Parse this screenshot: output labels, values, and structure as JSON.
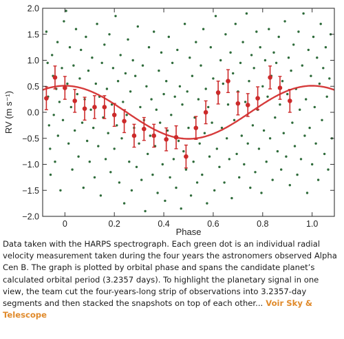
{
  "chart_data": {
    "type": "scatter",
    "xlabel": "Phase",
    "ylabel": "RV (m s⁻¹)",
    "xlim": [
      -0.09,
      1.09
    ],
    "ylim": [
      -2.0,
      2.0
    ],
    "xticks": [
      0.0,
      0.2,
      0.4,
      0.6,
      0.8,
      1.0
    ],
    "xtick_labels": [
      "0",
      "0.2",
      "0.4",
      "0.6",
      "0.8",
      "1.0"
    ],
    "yticks": [
      -2.0,
      -1.5,
      -1.0,
      -0.5,
      0.0,
      0.5,
      1.0,
      1.5,
      2.0
    ],
    "ytick_labels": [
      "−2.0",
      "−1.5",
      "−1.0",
      "−0.5",
      "0.0",
      "0.5",
      "1.0",
      "1.5",
      "2.0"
    ],
    "grid": false,
    "series": [
      {
        "kind": "individual_measurements",
        "color": "#2e6b3a",
        "points": [
          [
            -0.075,
            1.55
          ],
          [
            -0.07,
            0.95
          ],
          [
            -0.068,
            0.3
          ],
          [
            -0.064,
            -0.25
          ],
          [
            -0.06,
            -0.7
          ],
          [
            -0.058,
            -1.2
          ],
          [
            -0.052,
            1.1
          ],
          [
            -0.048,
            0.7
          ],
          [
            -0.045,
            -0.05
          ],
          [
            -0.04,
            -0.95
          ],
          [
            -0.035,
            0.45
          ],
          [
            -0.03,
            1.35
          ],
          [
            -0.028,
            -0.45
          ],
          [
            -0.022,
            0.2
          ],
          [
            -0.018,
            -1.5
          ],
          [
            -0.012,
            0.85
          ],
          [
            -0.008,
            -0.15
          ],
          [
            -0.004,
            1.75
          ],
          [
            0.005,
            1.95
          ],
          [
            0.01,
            0.55
          ],
          [
            0.015,
            -0.6
          ],
          [
            0.02,
            1.25
          ],
          [
            0.025,
            0.1
          ],
          [
            0.03,
            -1.1
          ],
          [
            0.035,
            0.9
          ],
          [
            0.04,
            -0.35
          ],
          [
            0.045,
            1.6
          ],
          [
            0.05,
            0.35
          ],
          [
            0.055,
            -0.85
          ],
          [
            0.06,
            0.65
          ],
          [
            0.065,
            1.2
          ],
          [
            0.07,
            -0.2
          ],
          [
            0.075,
            -1.45
          ],
          [
            0.08,
            0.25
          ],
          [
            0.085,
            1.45
          ],
          [
            0.09,
            -0.55
          ],
          [
            0.095,
            0.8
          ],
          [
            0.1,
            -0.95
          ],
          [
            0.105,
            0.05
          ],
          [
            0.11,
            1.05
          ],
          [
            0.115,
            -0.3
          ],
          [
            0.12,
            -1.25
          ],
          [
            0.125,
            0.55
          ],
          [
            0.13,
            1.7
          ],
          [
            0.135,
            -0.65
          ],
          [
            0.14,
            0.3
          ],
          [
            0.145,
            -1.6
          ],
          [
            0.15,
            0.95
          ],
          [
            0.155,
            -0.1
          ],
          [
            0.16,
            1.3
          ],
          [
            0.165,
            -0.9
          ],
          [
            0.17,
            0.45
          ],
          [
            0.175,
            -0.4
          ],
          [
            0.18,
            1.5
          ],
          [
            0.185,
            -1.15
          ],
          [
            0.19,
            0.15
          ],
          [
            0.195,
            0.85
          ],
          [
            0.2,
            -0.7
          ],
          [
            0.205,
            1.85
          ],
          [
            0.21,
            -0.25
          ],
          [
            0.215,
            0.6
          ],
          [
            0.22,
            -1.35
          ],
          [
            0.225,
            1.1
          ],
          [
            0.23,
            -0.5
          ],
          [
            0.235,
            0.2
          ],
          [
            0.24,
            -1.75
          ],
          [
            0.245,
            0.75
          ],
          [
            0.25,
            -0.05
          ],
          [
            0.255,
            1.4
          ],
          [
            0.26,
            -0.95
          ],
          [
            0.265,
            0.4
          ],
          [
            0.27,
            -1.5
          ],
          [
            0.275,
            1.0
          ],
          [
            0.28,
            -0.3
          ],
          [
            0.285,
            0.7
          ],
          [
            0.29,
            -1.05
          ],
          [
            0.295,
            1.65
          ],
          [
            0.3,
            -0.6
          ],
          [
            0.305,
            0.1
          ],
          [
            0.31,
            -1.3
          ],
          [
            0.315,
            0.9
          ],
          [
            0.32,
            -0.15
          ],
          [
            0.325,
            -1.9
          ],
          [
            0.33,
            0.5
          ],
          [
            0.335,
            -0.8
          ],
          [
            0.34,
            1.25
          ],
          [
            0.345,
            -0.45
          ],
          [
            0.35,
            0.25
          ],
          [
            0.355,
            -1.2
          ],
          [
            0.36,
            1.55
          ],
          [
            0.365,
            -0.65
          ],
          [
            0.37,
            0.05
          ],
          [
            0.375,
            -1.55
          ],
          [
            0.38,
            0.8
          ],
          [
            0.385,
            -0.2
          ],
          [
            0.39,
            1.15
          ],
          [
            0.395,
            -1.0
          ],
          [
            0.4,
            0.35
          ],
          [
            0.405,
            -1.7
          ],
          [
            0.41,
            0.6
          ],
          [
            0.415,
            -0.35
          ],
          [
            0.42,
            1.45
          ],
          [
            0.425,
            -1.25
          ],
          [
            0.43,
            -0.05
          ],
          [
            0.435,
            0.95
          ],
          [
            0.44,
            -0.9
          ],
          [
            0.445,
            0.3
          ],
          [
            0.45,
            -1.45
          ],
          [
            0.455,
            1.2
          ],
          [
            0.46,
            -0.55
          ],
          [
            0.465,
            0.5
          ],
          [
            0.47,
            -1.85
          ],
          [
            0.475,
            0.15
          ],
          [
            0.48,
            -0.75
          ],
          [
            0.485,
            1.7
          ],
          [
            0.49,
            -1.1
          ],
          [
            0.495,
            0.4
          ],
          [
            0.5,
            -0.3
          ],
          [
            0.505,
            1.05
          ],
          [
            0.51,
            -1.6
          ],
          [
            0.515,
            0.7
          ],
          [
            0.52,
            -0.95
          ],
          [
            0.525,
            -0.1
          ],
          [
            0.53,
            1.35
          ],
          [
            0.535,
            -1.35
          ],
          [
            0.54,
            0.25
          ],
          [
            0.545,
            -0.6
          ],
          [
            0.55,
            0.9
          ],
          [
            0.555,
            -1.2
          ],
          [
            0.56,
            1.6
          ],
          [
            0.565,
            -0.4
          ],
          [
            0.57,
            0.45
          ],
          [
            0.575,
            -1.75
          ],
          [
            0.58,
            0.1
          ],
          [
            0.585,
            -0.85
          ],
          [
            0.59,
            1.25
          ],
          [
            0.595,
            -0.2
          ],
          [
            0.6,
            0.65
          ],
          [
            0.605,
            -1.5
          ],
          [
            0.61,
            1.85
          ],
          [
            0.615,
            -0.7
          ],
          [
            0.62,
            0.35
          ],
          [
            0.625,
            -1.05
          ],
          [
            0.63,
            1.0
          ],
          [
            0.635,
            -0.3
          ],
          [
            0.64,
            0.55
          ],
          [
            0.645,
            -1.35
          ],
          [
            0.65,
            1.5
          ],
          [
            0.655,
            -0.5
          ],
          [
            0.66,
            0.15
          ],
          [
            0.665,
            -0.9
          ],
          [
            0.67,
            1.15
          ],
          [
            0.675,
            -1.65
          ],
          [
            0.68,
            0.75
          ],
          [
            0.685,
            -0.15
          ],
          [
            0.69,
            1.7
          ],
          [
            0.695,
            -0.8
          ],
          [
            0.7,
            0.4
          ],
          [
            0.705,
            -1.25
          ],
          [
            0.71,
            0.95
          ],
          [
            0.715,
            -0.45
          ],
          [
            0.72,
            1.35
          ],
          [
            0.725,
            -1.0
          ],
          [
            0.73,
            0.2
          ],
          [
            0.735,
            1.9
          ],
          [
            0.74,
            -0.6
          ],
          [
            0.745,
            0.6
          ],
          [
            0.75,
            -1.45
          ],
          [
            0.755,
            1.1
          ],
          [
            0.76,
            -0.25
          ],
          [
            0.765,
            0.85
          ],
          [
            0.77,
            -1.15
          ],
          [
            0.775,
            1.55
          ],
          [
            0.78,
            0.05
          ],
          [
            0.785,
            -0.7
          ],
          [
            0.79,
            1.25
          ],
          [
            0.795,
            -1.55
          ],
          [
            0.8,
            0.5
          ],
          [
            0.805,
            -0.35
          ],
          [
            0.81,
            1.0
          ],
          [
            0.815,
            -0.95
          ],
          [
            0.82,
            0.3
          ],
          [
            0.825,
            1.6
          ],
          [
            0.83,
            -0.5
          ],
          [
            0.835,
            0.7
          ],
          [
            0.84,
            -1.3
          ],
          [
            0.845,
            1.15
          ],
          [
            0.85,
            -0.1
          ],
          [
            0.855,
            0.95
          ],
          [
            0.86,
            -0.75
          ],
          [
            0.865,
            1.45
          ],
          [
            0.87,
            0.15
          ],
          [
            0.875,
            -1.1
          ],
          [
            0.88,
            0.6
          ],
          [
            0.885,
            -0.4
          ],
          [
            0.89,
            1.75
          ],
          [
            0.895,
            -0.85
          ],
          [
            0.9,
            0.35
          ],
          [
            0.905,
            1.05
          ],
          [
            0.91,
            -1.4
          ],
          [
            0.915,
            0.8
          ],
          [
            0.92,
            -0.2
          ],
          [
            0.925,
            1.3
          ],
          [
            0.93,
            -0.65
          ],
          [
            0.935,
            0.45
          ],
          [
            0.94,
            -1.2
          ],
          [
            0.945,
            1.55
          ],
          [
            0.95,
            0.05
          ],
          [
            0.955,
            -0.9
          ],
          [
            0.96,
            0.9
          ],
          [
            0.965,
            1.9
          ],
          [
            0.97,
            -0.45
          ],
          [
            0.975,
            0.25
          ],
          [
            0.98,
            -1.55
          ],
          [
            0.985,
            1.2
          ],
          [
            0.99,
            -0.3
          ],
          [
            0.995,
            0.7
          ],
          [
            1.0,
            -1.0
          ],
          [
            1.005,
            1.45
          ],
          [
            1.01,
            0.1
          ],
          [
            1.015,
            -0.6
          ],
          [
            1.02,
            1.05
          ],
          [
            1.025,
            -1.3
          ],
          [
            1.03,
            0.55
          ],
          [
            1.035,
            1.7
          ],
          [
            1.04,
            -0.15
          ],
          [
            1.045,
            0.85
          ],
          [
            1.05,
            -0.8
          ],
          [
            1.055,
            1.25
          ],
          [
            1.06,
            0.3
          ],
          [
            1.065,
            -1.1
          ],
          [
            1.07,
            0.65
          ],
          [
            1.075,
            1.5
          ],
          [
            1.08,
            -0.5
          ]
        ]
      },
      {
        "kind": "binned_means",
        "color": "#cc2a2a",
        "points": [
          {
            "x": -0.075,
            "y": 0.27,
            "err": 0.22
          },
          {
            "x": -0.04,
            "y": 0.67,
            "err": 0.22
          },
          {
            "x": 0.0,
            "y": 0.47,
            "err": 0.22
          },
          {
            "x": 0.04,
            "y": 0.22,
            "err": 0.22
          },
          {
            "x": 0.08,
            "y": 0.07,
            "err": 0.22
          },
          {
            "x": 0.12,
            "y": 0.1,
            "err": 0.22
          },
          {
            "x": 0.16,
            "y": 0.1,
            "err": 0.22
          },
          {
            "x": 0.2,
            "y": -0.05,
            "err": 0.22
          },
          {
            "x": 0.24,
            "y": -0.17,
            "err": 0.22
          },
          {
            "x": 0.28,
            "y": -0.45,
            "err": 0.22
          },
          {
            "x": 0.32,
            "y": -0.32,
            "err": 0.22
          },
          {
            "x": 0.36,
            "y": -0.45,
            "err": 0.22
          },
          {
            "x": 0.41,
            "y": -0.52,
            "err": 0.22
          },
          {
            "x": 0.45,
            "y": -0.48,
            "err": 0.22
          },
          {
            "x": 0.49,
            "y": -0.85,
            "err": 0.22
          },
          {
            "x": 0.53,
            "y": -0.3,
            "err": 0.22
          },
          {
            "x": 0.57,
            "y": 0.0,
            "err": 0.22
          },
          {
            "x": 0.62,
            "y": 0.38,
            "err": 0.22
          },
          {
            "x": 0.66,
            "y": 0.6,
            "err": 0.22
          },
          {
            "x": 0.7,
            "y": 0.17,
            "err": 0.22
          },
          {
            "x": 0.74,
            "y": 0.14,
            "err": 0.22
          },
          {
            "x": 0.78,
            "y": 0.27,
            "err": 0.22
          },
          {
            "x": 0.83,
            "y": 0.67,
            "err": 0.22
          },
          {
            "x": 0.87,
            "y": 0.47,
            "err": 0.22
          },
          {
            "x": 0.91,
            "y": 0.22,
            "err": 0.22
          }
        ]
      },
      {
        "kind": "model_curve",
        "color": "#d63b3b",
        "amplitude": 0.51,
        "phase_of_max": 0.0
      }
    ]
  },
  "caption": {
    "text": "Data taken with the HARPS spectrograph. Each green dot is an individual radial velocity measurement taken during the four years the astronomers observed Alpha Cen B. The graph is plotted by orbital phase and spans the candidate planet’s calculated orbital period (3.2357 days). To highlight the planetary signal in one view, the team cut the four-years-long strip of observations into 3.2357-day segments and then stacked the snapshots on top of each other...",
    "credit": " Voir Sky & Telescope"
  }
}
